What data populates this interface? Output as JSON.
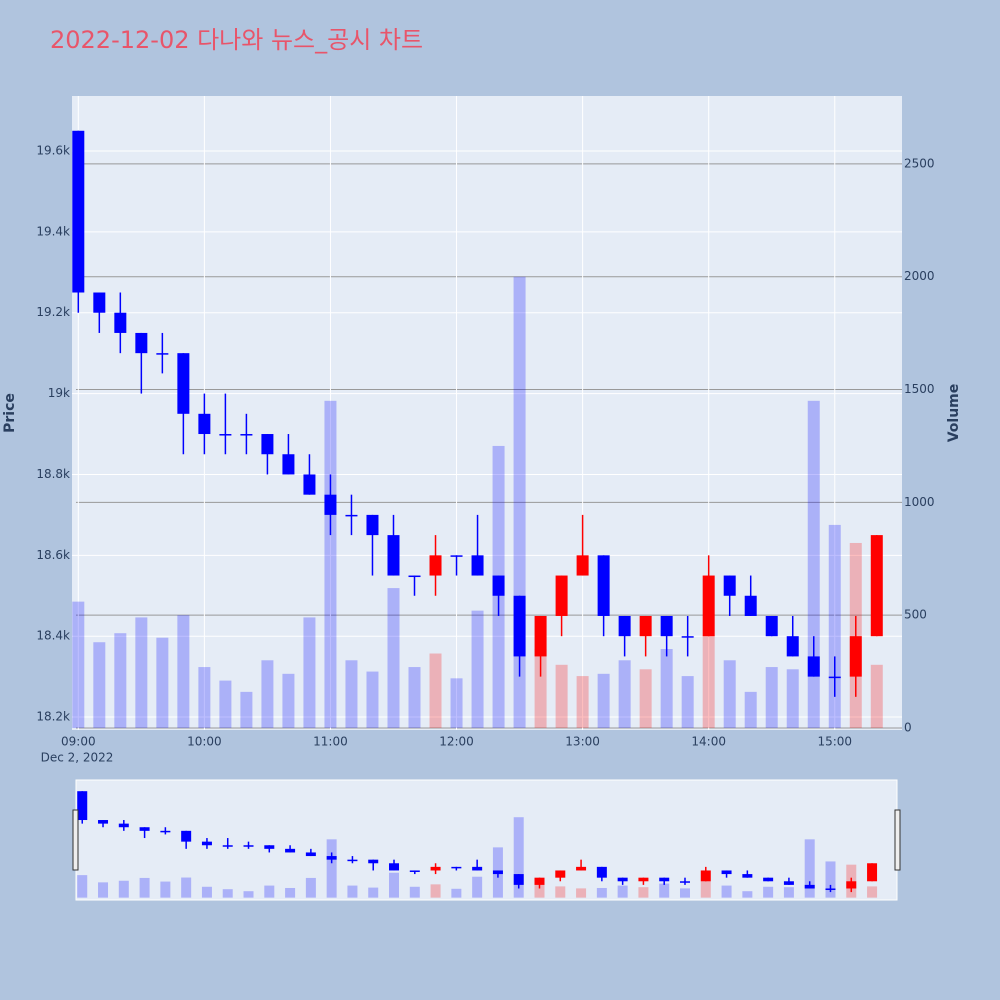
{
  "chart_data": {
    "type": "candlestick",
    "title": "2022-12-02 다나와 뉴스_공시 차트",
    "y_label": "Price",
    "y2_label": "Volume",
    "x_date_label": "Dec 2, 2022",
    "increasing_color": "#ff0000",
    "decreasing_color": "#0000ff",
    "x": [
      "2022-12-02 09:00",
      "2022-12-02 09:10",
      "2022-12-02 09:20",
      "2022-12-02 09:30",
      "2022-12-02 09:40",
      "2022-12-02 09:50",
      "2022-12-02 10:00",
      "2022-12-02 10:10",
      "2022-12-02 10:20",
      "2022-12-02 10:30",
      "2022-12-02 10:40",
      "2022-12-02 10:50",
      "2022-12-02 11:00",
      "2022-12-02 11:10",
      "2022-12-02 11:20",
      "2022-12-02 11:30",
      "2022-12-02 11:40",
      "2022-12-02 11:50",
      "2022-12-02 12:00",
      "2022-12-02 12:10",
      "2022-12-02 12:20",
      "2022-12-02 12:30",
      "2022-12-02 12:40",
      "2022-12-02 12:50",
      "2022-12-02 13:00",
      "2022-12-02 13:10",
      "2022-12-02 13:20",
      "2022-12-02 13:30",
      "2022-12-02 13:40",
      "2022-12-02 13:50",
      "2022-12-02 14:00",
      "2022-12-02 14:10",
      "2022-12-02 14:20",
      "2022-12-02 14:30",
      "2022-12-02 14:40",
      "2022-12-02 14:50",
      "2022-12-02 15:00",
      "2022-12-02 15:10",
      "2022-12-02 15:20"
    ],
    "open": [
      19650,
      19250,
      19200,
      19150,
      19100,
      19100,
      18950,
      18900,
      18900,
      18900,
      18850,
      18800,
      18750,
      18700,
      18700,
      18650,
      18550,
      18550,
      18600,
      18600,
      18550,
      18500,
      18350,
      18450,
      18550,
      18600,
      18450,
      18400,
      18450,
      18400,
      18400,
      18550,
      18500,
      18450,
      18400,
      18350,
      18300,
      18300,
      18400
    ],
    "high": [
      19650,
      19250,
      19250,
      19150,
      19150,
      19100,
      19000,
      19000,
      18950,
      18900,
      18900,
      18850,
      18800,
      18750,
      18700,
      18700,
      18550,
      18650,
      18600,
      18700,
      18550,
      18500,
      18450,
      18550,
      18700,
      18600,
      18450,
      18450,
      18450,
      18450,
      18600,
      18550,
      18550,
      18450,
      18450,
      18400,
      18350,
      18450,
      18650
    ],
    "low": [
      19200,
      19150,
      19100,
      19000,
      19050,
      18850,
      18850,
      18850,
      18850,
      18800,
      18800,
      18750,
      18650,
      18650,
      18550,
      18550,
      18500,
      18500,
      18550,
      18550,
      18450,
      18300,
      18300,
      18400,
      18550,
      18400,
      18350,
      18350,
      18350,
      18350,
      18400,
      18450,
      18450,
      18400,
      18350,
      18300,
      18250,
      18250,
      18400
    ],
    "close": [
      19250,
      19200,
      19150,
      19100,
      19100,
      18950,
      18900,
      18900,
      18900,
      18850,
      18800,
      18750,
      18700,
      18700,
      18650,
      18550,
      18550,
      18600,
      18600,
      18550,
      18500,
      18350,
      18450,
      18550,
      18600,
      18450,
      18400,
      18450,
      18400,
      18400,
      18550,
      18500,
      18450,
      18400,
      18350,
      18300,
      18300,
      18400,
      18650
    ],
    "volume": [
      560,
      380,
      420,
      490,
      400,
      500,
      270,
      210,
      160,
      300,
      240,
      490,
      1450,
      300,
      250,
      620,
      270,
      330,
      220,
      520,
      1250,
      2000,
      350,
      280,
      230,
      240,
      300,
      260,
      350,
      230,
      410,
      300,
      160,
      270,
      260,
      1450,
      900,
      820,
      280
    ],
    "xlim": [
      "2022-12-02 08:57",
      "2022-12-02 15:32"
    ],
    "xticks": [
      {
        "value": "2022-12-02 09:00",
        "label": "09:00"
      },
      {
        "value": "2022-12-02 10:00",
        "label": "10:00"
      },
      {
        "value": "2022-12-02 11:00",
        "label": "11:00"
      },
      {
        "value": "2022-12-02 12:00",
        "label": "12:00"
      },
      {
        "value": "2022-12-02 13:00",
        "label": "13:00"
      },
      {
        "value": "2022-12-02 14:00",
        "label": "14:00"
      },
      {
        "value": "2022-12-02 15:00",
        "label": "15:00"
      }
    ],
    "ylim": [
      18168,
      19736
    ],
    "yticks": [
      {
        "value": 18200,
        "label": "18.2k"
      },
      {
        "value": 18400,
        "label": "18.4k"
      },
      {
        "value": 18600,
        "label": "18.6k"
      },
      {
        "value": 18800,
        "label": "18.8k"
      },
      {
        "value": 19000,
        "label": "19k"
      },
      {
        "value": 19200,
        "label": "19.2k"
      },
      {
        "value": 19400,
        "label": "19.4k"
      },
      {
        "value": 19600,
        "label": "19.6k"
      }
    ],
    "y2lim": [
      -9,
      2801
    ],
    "y2ticks": [
      0,
      500,
      1000,
      1500,
      2000,
      2500
    ],
    "grid": true
  }
}
